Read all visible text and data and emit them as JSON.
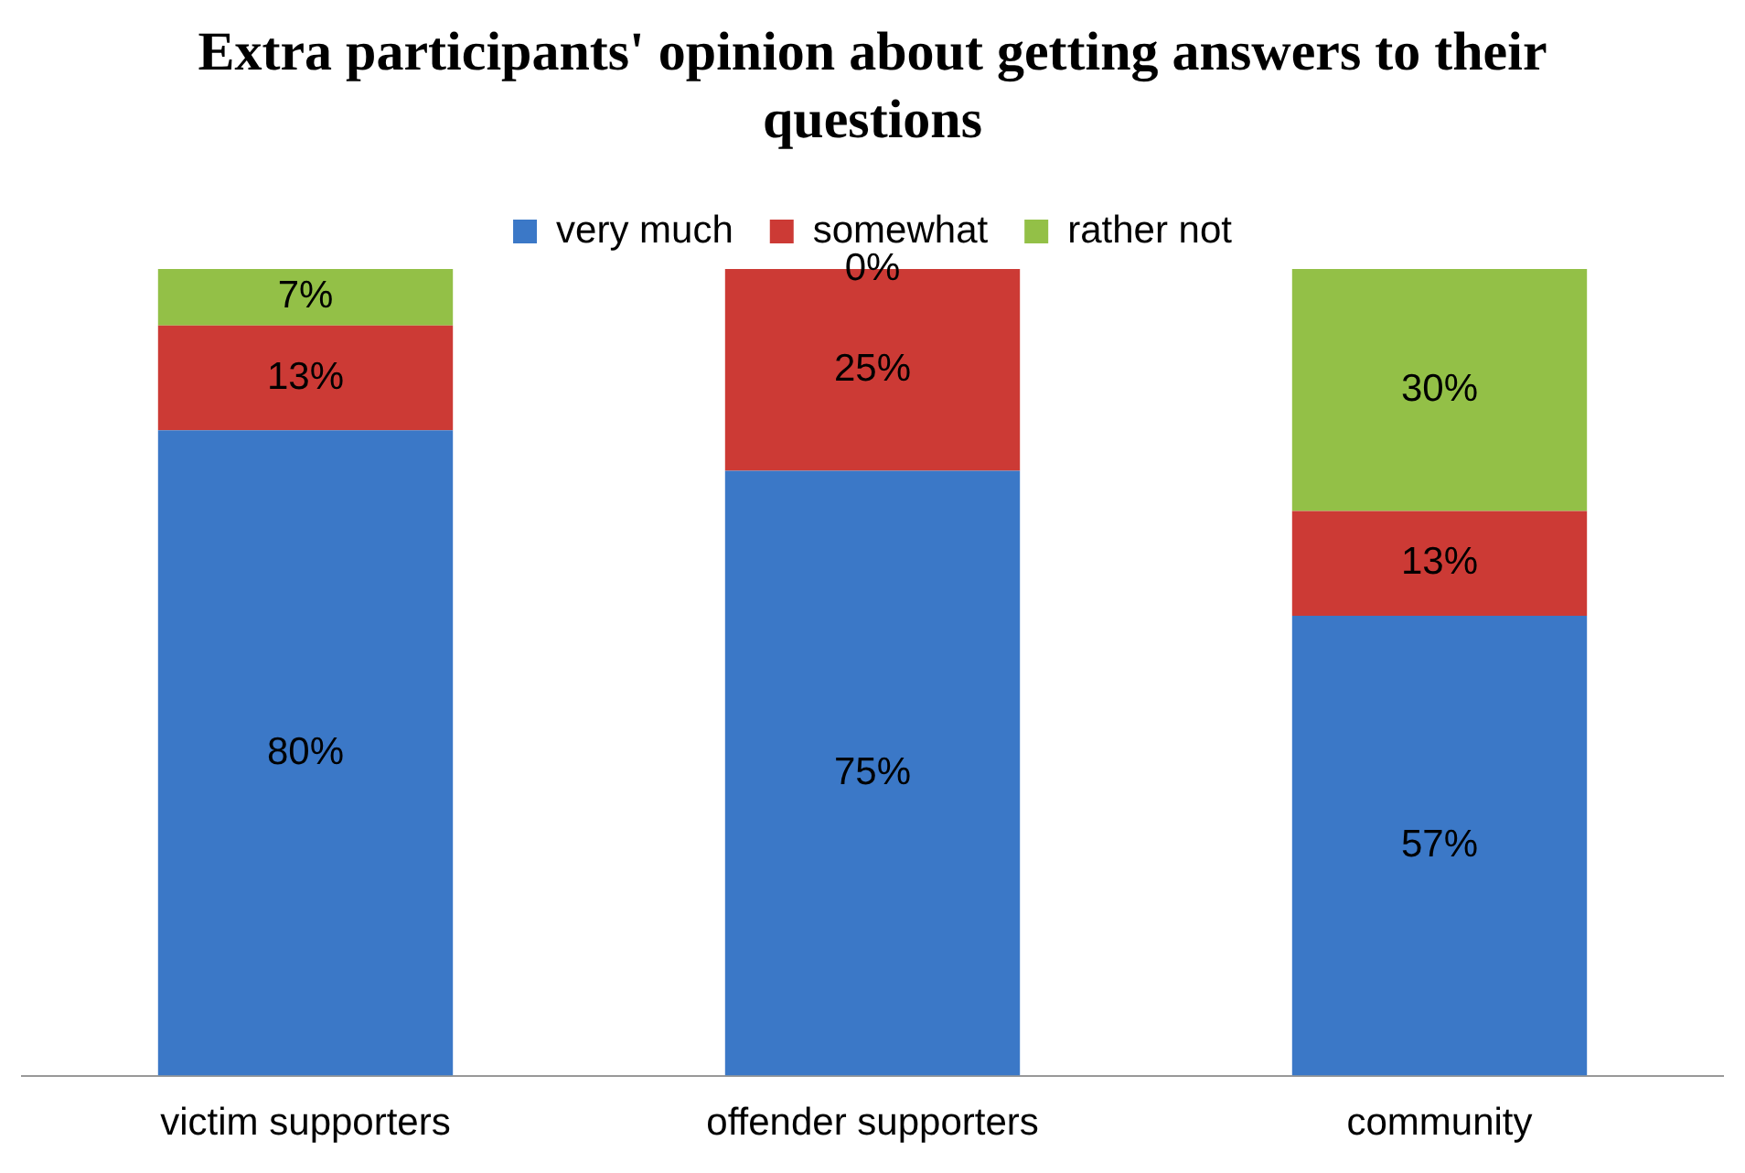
{
  "chart_data": {
    "type": "bar",
    "stacked": true,
    "title": "Extra participants' opinion about getting answers to their questions",
    "categories": [
      "victim supporters",
      "offender supporters",
      "community"
    ],
    "series": [
      {
        "name": "very much",
        "color": "#3b78c7",
        "values": [
          80,
          75,
          57
        ],
        "value_labels": [
          "80%",
          "75%",
          "57%"
        ]
      },
      {
        "name": "somewhat",
        "color": "#cc3a35",
        "values": [
          13,
          25,
          13
        ],
        "value_labels": [
          "13%",
          "25%",
          "13%"
        ]
      },
      {
        "name": "rather not",
        "color": "#93c047",
        "values": [
          7,
          0,
          30
        ],
        "value_labels": [
          "7%",
          "0%",
          "30%"
        ]
      }
    ],
    "ylim": [
      0,
      100
    ],
    "tick_labels": "x",
    "grid": false,
    "legend": "top"
  }
}
